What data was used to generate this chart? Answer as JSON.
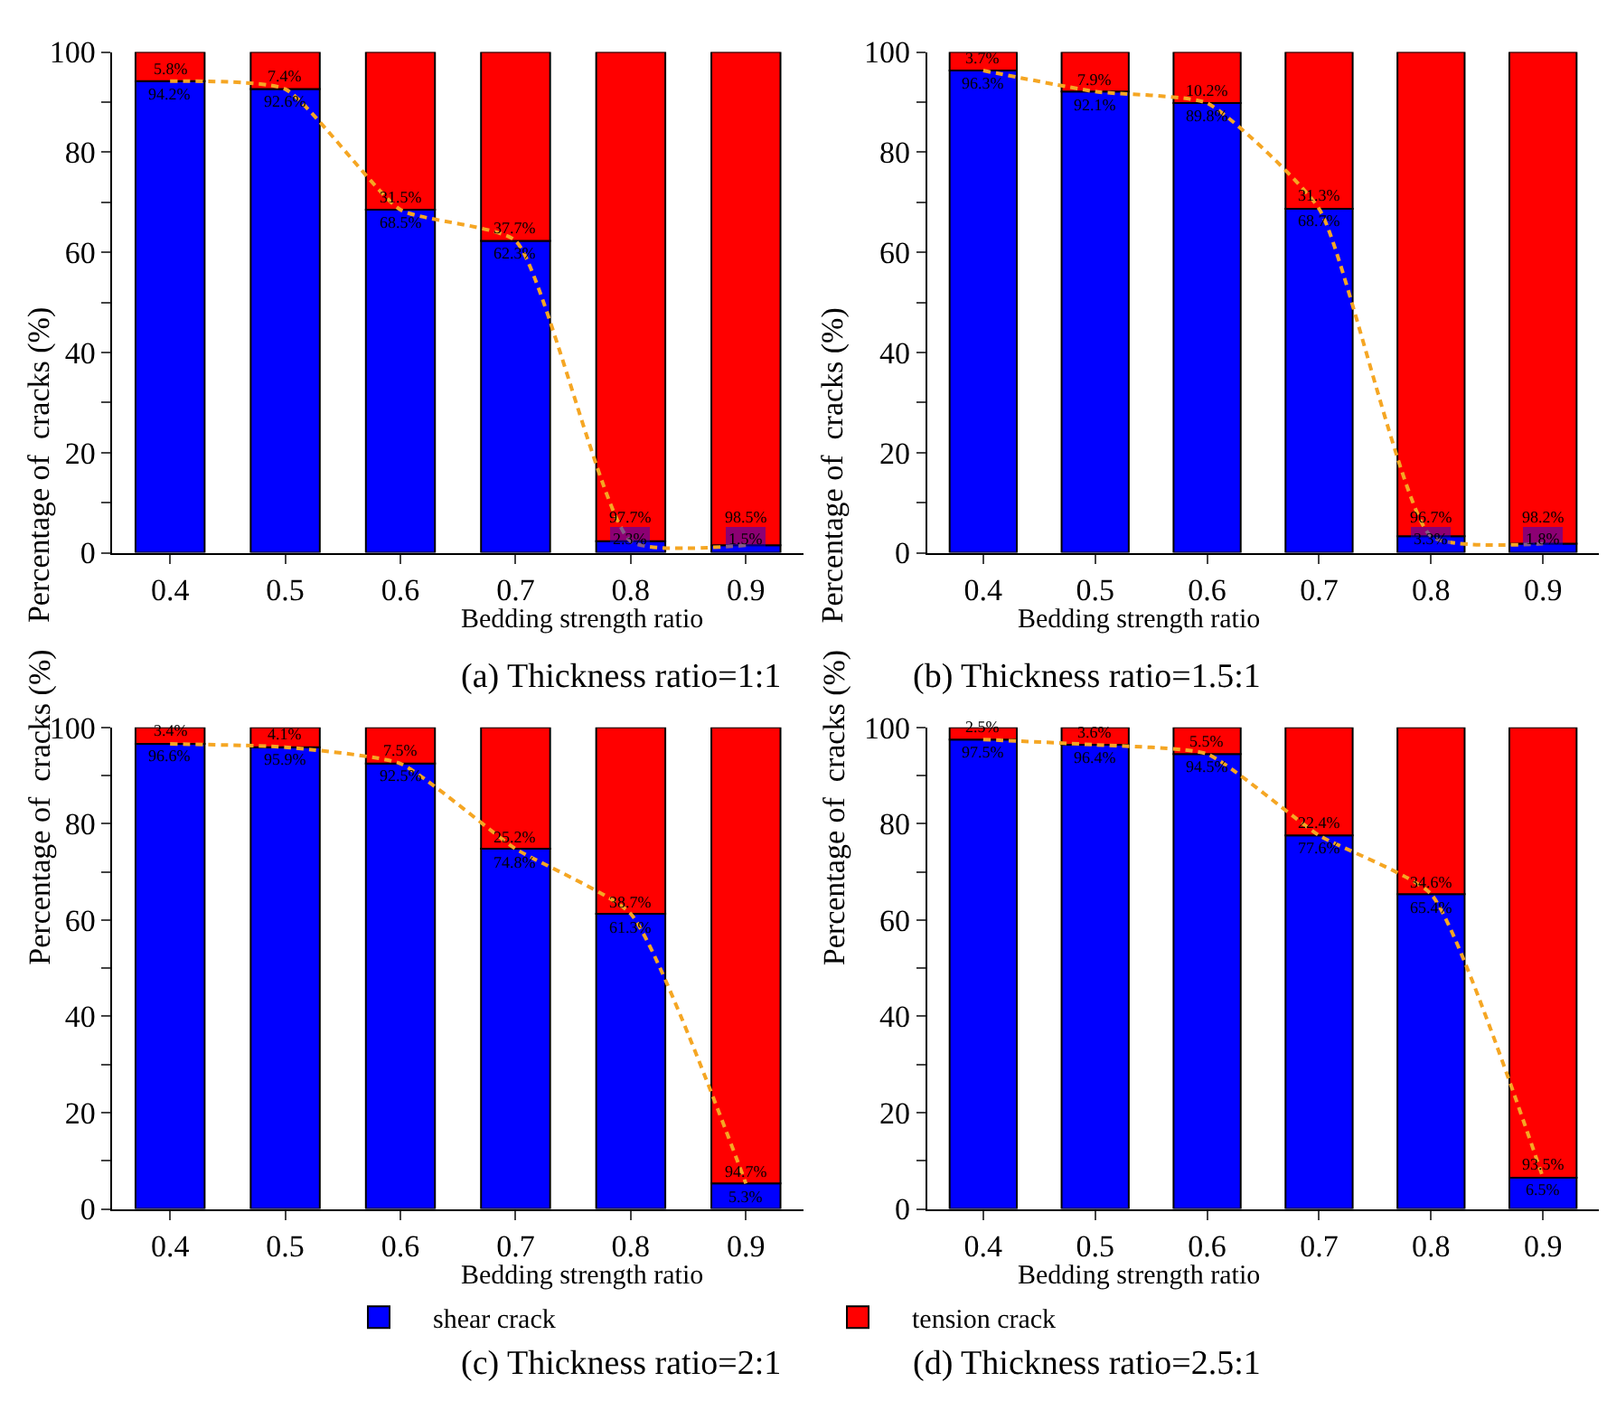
{
  "chart_data": [
    {
      "type": "bar",
      "title": "(a) Thickness ratio=1:1",
      "xlabel": "Bedding strength ratio",
      "ylabel": "Percentage of  cracks (%)",
      "categories": [
        "0.4",
        "0.5",
        "0.6",
        "0.7",
        "0.8",
        "0.9"
      ],
      "stacked": true,
      "ylim": [
        0,
        100
      ],
      "yticks": [
        0,
        {
          "value": 10,
          "label": null
        },
        20,
        {
          "value": 30,
          "label": null
        },
        40,
        {
          "value": 50,
          "label": null
        },
        60,
        {
          "value": 70,
          "label": null
        },
        80,
        {
          "value": 90,
          "label": null
        },
        100
      ],
      "legend": "bottom",
      "series": [
        {
          "name": "shear crack",
          "color": "#0000ff",
          "values": [
            94.2,
            92.6,
            68.5,
            62.3,
            2.3,
            1.5
          ],
          "value_labels": [
            "94.2%",
            "92.6%",
            "68.5%",
            "62.3%",
            "2.3%",
            "1.5%"
          ]
        },
        {
          "name": "tension crack",
          "color": "#ff0000",
          "values": [
            5.8,
            7.4,
            31.5,
            37.7,
            97.7,
            98.5
          ],
          "value_labels": [
            "5.8%",
            "7.4%",
            "31.5%",
            "37.7%",
            "97.7%",
            "98.5%"
          ]
        },
        {
          "type": "line",
          "color": "#f5a623",
          "line_style": "dashed",
          "marker": "none",
          "values": [
            94.2,
            92.6,
            68.5,
            62.3,
            2.3,
            1.5
          ]
        }
      ]
    },
    {
      "type": "bar",
      "title": "(b) Thickness ratio=1.5:1",
      "xlabel": "Bedding strength ratio",
      "ylabel": "Percentage of  cracks (%)",
      "categories": [
        "0.4",
        "0.5",
        "0.6",
        "0.7",
        "0.8",
        "0.9"
      ],
      "stacked": true,
      "ylim": [
        0,
        100
      ],
      "yticks": [
        0,
        {
          "value": 10,
          "label": null
        },
        20,
        {
          "value": 30,
          "label": null
        },
        40,
        {
          "value": 50,
          "label": null
        },
        60,
        {
          "value": 70,
          "label": null
        },
        80,
        {
          "value": 90,
          "label": null
        },
        100
      ],
      "legend": "bottom",
      "series": [
        {
          "name": "shear crack",
          "color": "#0000ff",
          "values": [
            96.3,
            92.1,
            89.8,
            68.7,
            3.3,
            1.8
          ],
          "value_labels": [
            "96.3%",
            "92.1%",
            "89.8%",
            "68.7%",
            "3.3%",
            "1.8%"
          ]
        },
        {
          "name": "tension crack",
          "color": "#ff0000",
          "values": [
            3.7,
            7.9,
            10.2,
            31.3,
            96.7,
            98.2
          ],
          "value_labels": [
            "3.7%",
            "7.9%",
            "10.2%",
            "31.3%",
            "96.7%",
            "98.2%"
          ]
        },
        {
          "type": "line",
          "color": "#f5a623",
          "line_style": "dashed",
          "marker": "none",
          "values": [
            96.3,
            92.1,
            89.8,
            68.7,
            3.3,
            1.8
          ]
        }
      ]
    },
    {
      "type": "bar",
      "title": "(c) Thickness ratio=2:1",
      "xlabel": "Bedding strength ratio",
      "ylabel": "Percentage of  cracks (%)",
      "categories": [
        "0.4",
        "0.5",
        "0.6",
        "0.7",
        "0.8",
        "0.9"
      ],
      "stacked": true,
      "ylim": [
        0,
        100
      ],
      "yticks": [
        0,
        {
          "value": 10,
          "label": null
        },
        20,
        {
          "value": 30,
          "label": null
        },
        40,
        {
          "value": 50,
          "label": null
        },
        60,
        {
          "value": 70,
          "label": null
        },
        80,
        {
          "value": 90,
          "label": null
        },
        100
      ],
      "legend": "bottom",
      "series": [
        {
          "name": "shear crack",
          "color": "#0000ff",
          "values": [
            96.6,
            95.9,
            92.5,
            74.8,
            61.3,
            5.3
          ],
          "value_labels": [
            "96.6%",
            "95.9%",
            "92.5%",
            "74.8%",
            "61.3%",
            "5.3%"
          ]
        },
        {
          "name": "tension crack",
          "color": "#ff0000",
          "values": [
            3.4,
            4.1,
            7.5,
            25.2,
            38.7,
            94.7
          ],
          "value_labels": [
            "3.4%",
            "4.1%",
            "7.5%",
            "25.2%",
            "38.7%",
            "94.7%"
          ]
        },
        {
          "type": "line",
          "color": "#f5a623",
          "line_style": "dashed",
          "marker": "none",
          "values": [
            96.6,
            95.9,
            92.5,
            74.8,
            61.3,
            5.3
          ]
        }
      ]
    },
    {
      "type": "bar",
      "title": "(d) Thickness ratio=2.5:1",
      "xlabel": "Bedding strength ratio",
      "ylabel": "Percentage of  cracks (%)",
      "categories": [
        "0.4",
        "0.5",
        "0.6",
        "0.7",
        "0.8",
        "0.9"
      ],
      "stacked": true,
      "ylim": [
        0,
        100
      ],
      "yticks": [
        0,
        {
          "value": 10,
          "label": null
        },
        20,
        {
          "value": 30,
          "label": null
        },
        40,
        {
          "value": 50,
          "label": null
        },
        60,
        {
          "value": 70,
          "label": null
        },
        80,
        {
          "value": 90,
          "label": null
        },
        100
      ],
      "legend": "bottom",
      "series": [
        {
          "name": "shear crack",
          "color": "#0000ff",
          "values": [
            97.5,
            96.4,
            94.5,
            77.6,
            65.4,
            6.5
          ],
          "value_labels": [
            "97.5%",
            "96.4%",
            "94.5%",
            "77.6%",
            "65.4%",
            "6.5%"
          ]
        },
        {
          "name": "tension crack",
          "color": "#ff0000",
          "values": [
            2.5,
            3.6,
            5.5,
            22.4,
            34.6,
            93.5
          ],
          "value_labels": [
            "2.5%",
            "3.6%",
            "5.5%",
            "22.4%",
            "34.6%",
            "93.5%"
          ]
        },
        {
          "type": "line",
          "color": "#f5a623",
          "line_style": "dashed",
          "marker": "none",
          "values": [
            97.5,
            96.4,
            94.5,
            77.6,
            65.4,
            6.5
          ]
        }
      ]
    }
  ]
}
